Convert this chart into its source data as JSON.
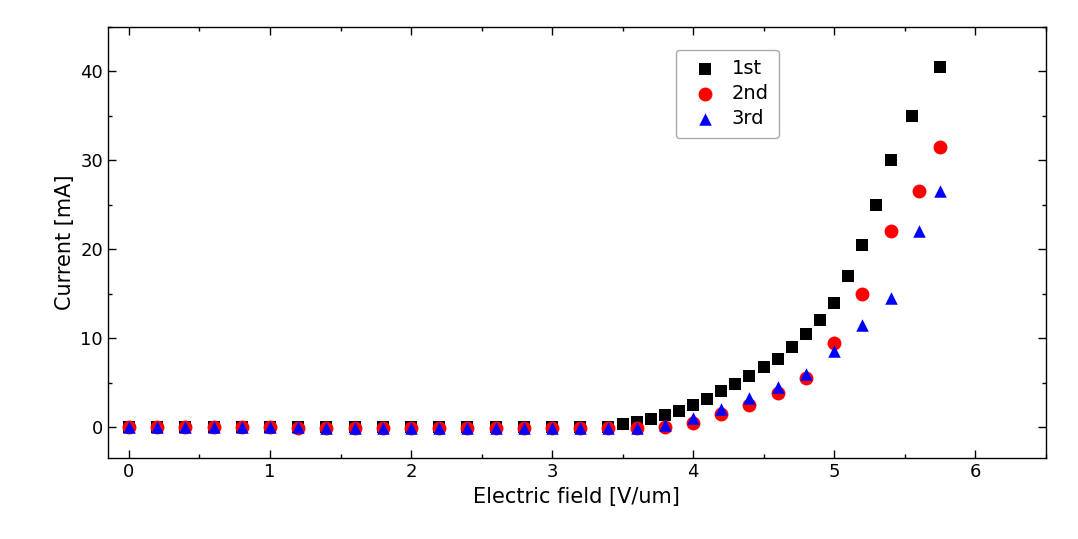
{
  "series": {
    "1st": {
      "color": "#000000",
      "marker": "s",
      "markersize": 8,
      "x": [
        0.0,
        0.2,
        0.4,
        0.6,
        0.8,
        1.0,
        1.2,
        1.4,
        1.6,
        1.8,
        2.0,
        2.2,
        2.4,
        2.6,
        2.8,
        3.0,
        3.2,
        3.4,
        3.5,
        3.6,
        3.7,
        3.8,
        3.9,
        4.0,
        4.1,
        4.2,
        4.3,
        4.4,
        4.5,
        4.6,
        4.7,
        4.8,
        4.9,
        5.0,
        5.1,
        5.2,
        5.3,
        5.4,
        5.55,
        5.75
      ],
      "y": [
        0.0,
        0.0,
        0.0,
        0.0,
        0.0,
        0.0,
        0.0,
        0.0,
        0.0,
        0.0,
        0.0,
        0.0,
        0.0,
        0.0,
        0.0,
        0.0,
        0.0,
        0.0,
        0.3,
        0.6,
        0.9,
        1.3,
        1.8,
        2.5,
        3.2,
        4.0,
        4.8,
        5.7,
        6.7,
        7.7,
        9.0,
        10.5,
        12.0,
        14.0,
        17.0,
        20.5,
        25.0,
        30.0,
        35.0,
        40.5
      ]
    },
    "2nd": {
      "color": "#ff0000",
      "marker": "o",
      "markersize": 10,
      "x": [
        0.0,
        0.2,
        0.4,
        0.6,
        0.8,
        1.0,
        1.2,
        1.4,
        1.6,
        1.8,
        2.0,
        2.2,
        2.4,
        2.6,
        2.8,
        3.0,
        3.2,
        3.4,
        3.6,
        3.8,
        4.0,
        4.2,
        4.4,
        4.6,
        4.8,
        5.0,
        5.2,
        5.4,
        5.6,
        5.75
      ],
      "y": [
        0.0,
        0.0,
        0.0,
        0.0,
        0.0,
        0.0,
        -0.1,
        -0.1,
        -0.1,
        -0.1,
        -0.1,
        -0.1,
        -0.1,
        -0.1,
        -0.1,
        -0.1,
        -0.1,
        -0.1,
        -0.1,
        0.0,
        0.5,
        1.5,
        2.5,
        3.8,
        5.5,
        9.5,
        15.0,
        22.0,
        26.5,
        31.5
      ]
    },
    "3rd": {
      "color": "#0000ff",
      "marker": "^",
      "markersize": 9,
      "x": [
        0.0,
        0.2,
        0.4,
        0.6,
        0.8,
        1.0,
        1.2,
        1.4,
        1.6,
        1.8,
        2.0,
        2.2,
        2.4,
        2.6,
        2.8,
        3.0,
        3.2,
        3.4,
        3.6,
        3.8,
        4.0,
        4.2,
        4.4,
        4.6,
        4.8,
        5.0,
        5.2,
        5.4,
        5.6,
        5.75
      ],
      "y": [
        0.0,
        0.0,
        0.0,
        0.0,
        0.0,
        0.0,
        0.0,
        -0.1,
        -0.1,
        -0.1,
        -0.1,
        -0.1,
        -0.1,
        -0.1,
        -0.1,
        -0.1,
        -0.1,
        -0.1,
        -0.1,
        0.2,
        1.0,
        2.0,
        3.3,
        4.5,
        6.0,
        8.5,
        11.5,
        14.5,
        22.0,
        26.5
      ]
    }
  },
  "xlabel": "Electric field [V/um]",
  "ylabel": "Current [mA]",
  "xlim": [
    -0.15,
    6.5
  ],
  "ylim": [
    -3.5,
    45
  ],
  "xticks": [
    0,
    1,
    2,
    3,
    4,
    5,
    6
  ],
  "yticks": [
    0,
    10,
    20,
    30,
    40
  ],
  "background_color": "#ffffff",
  "axis_fontsize": 15,
  "tick_fontsize": 13,
  "legend_fontsize": 14
}
